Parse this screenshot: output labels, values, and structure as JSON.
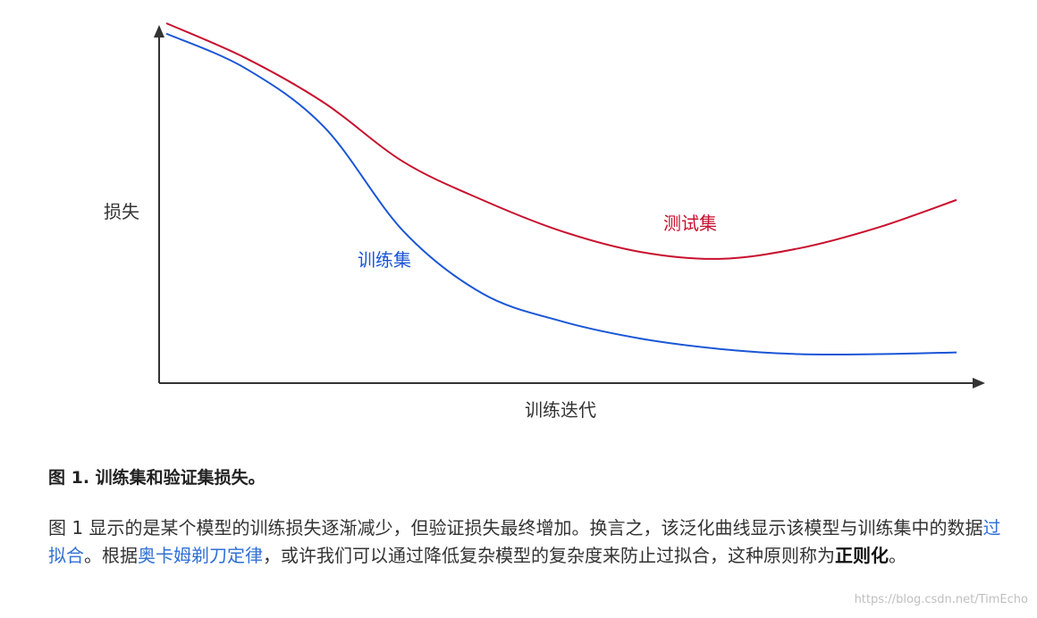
{
  "chart_data": {
    "type": "line",
    "xlabel": "训练迭代",
    "ylabel": "损失",
    "grid": false,
    "legend": "inline labels",
    "x": [
      0,
      1,
      2,
      3,
      4,
      5,
      6,
      7,
      8,
      9,
      10
    ],
    "series": [
      {
        "name": "训练集",
        "color": "#1a56d6",
        "values": [
          0.97,
          0.87,
          0.7,
          0.4,
          0.22,
          0.14,
          0.09,
          0.06,
          0.045,
          0.045,
          0.05
        ]
      },
      {
        "name": "测试集",
        "color": "#c8102e",
        "values": [
          1.0,
          0.9,
          0.77,
          0.6,
          0.49,
          0.4,
          0.34,
          0.32,
          0.35,
          0.41,
          0.49
        ]
      }
    ]
  },
  "caption": "图 1. 训练集和验证集损失。",
  "paragraph": {
    "part1": "图 1 显示的是某个模型的训练损失逐渐减少，但验证损失最终增加。换言之，该泛化曲线显示该模型与训练集中的数据",
    "link1": "过拟合",
    "part2": "。根据",
    "link2": "奥卡姆剃刀定律",
    "part3": "，或许我们可以通过降低复杂模型的复杂度来防止过拟合，这种原则称为",
    "bold": "正则化",
    "part4": "。"
  },
  "watermark": "https://blog.csdn.net/TimEcho"
}
